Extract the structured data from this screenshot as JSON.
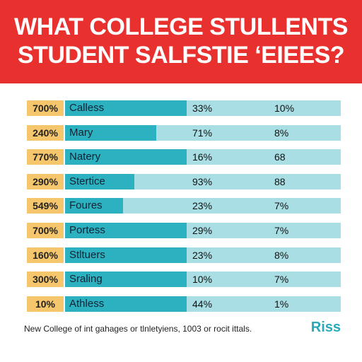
{
  "header": {
    "line1": "WHAT COLLEGE STULLENTS",
    "line2": "STUDENT SALFSTIE ‘EIEES?"
  },
  "table": {
    "rows": [
      {
        "badge": "700%",
        "name": "Calless",
        "bar": 44,
        "col1": "33%",
        "col2": "10%"
      },
      {
        "badge": "240%",
        "name": "Mary",
        "bar": 33,
        "col1": "71%",
        "col2": "8%"
      },
      {
        "badge": "770%",
        "name": "Natery",
        "bar": 44,
        "col1": "16%",
        "col2": "68"
      },
      {
        "badge": "290%",
        "name": "Stertice",
        "bar": 25,
        "col1": "93%",
        "col2": "88"
      },
      {
        "badge": "549%",
        "name": "Foures",
        "bar": 21,
        "col1": "23%",
        "col2": "7%"
      },
      {
        "badge": "700%",
        "name": "Portess",
        "bar": 44,
        "col1": "29%",
        "col2": "7%"
      },
      {
        "badge": "160%",
        "name": "Stltuers",
        "bar": 44,
        "col1": "23%",
        "col2": "8%"
      },
      {
        "badge": "300%",
        "name": "Sraling",
        "bar": 44,
        "col1": "10%",
        "col2": "7%"
      },
      {
        "badge": "10%",
        "name": "Athless",
        "bar": 44,
        "col1": "44%",
        "col2": "1%"
      }
    ]
  },
  "footer": {
    "note": "New College of int gahages or tlnletyiens, 1003 or rocit ittals.",
    "brand": "Riss"
  }
}
